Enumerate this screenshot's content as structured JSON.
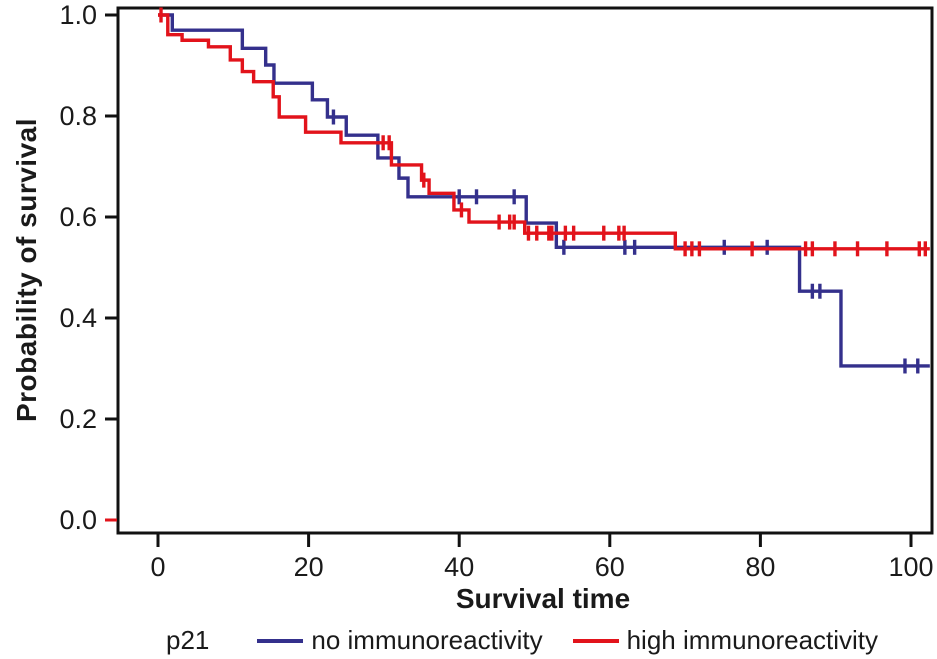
{
  "chart_data": {
    "type": "line",
    "subtype": "kaplan-meier-step-survival",
    "title": "",
    "xlabel": "Survival time",
    "ylabel": "Probability of survival",
    "xlim": [
      0,
      103
    ],
    "ylim": [
      0.0,
      1.0
    ],
    "xticks": [
      0,
      20,
      40,
      60,
      80,
      100
    ],
    "yticks": [
      "0.0",
      "0.2",
      "0.4",
      "0.6",
      "0.8",
      "1.0"
    ],
    "grid": false,
    "legend_position": "bottom",
    "legend_title": "p21",
    "axis_color": "#111111",
    "zero_tick_color": "#e2131b",
    "series": [
      {
        "name": "no immunoreactivity",
        "color": "#34308c",
        "end_time": 102.5,
        "steps": [
          [
            0,
            1.0
          ],
          [
            1.9,
            0.97
          ],
          [
            11.2,
            0.934
          ],
          [
            14.3,
            0.901
          ],
          [
            15.4,
            0.865
          ],
          [
            20.5,
            0.832
          ],
          [
            22.5,
            0.798
          ],
          [
            25.0,
            0.762
          ],
          [
            29.2,
            0.717
          ],
          [
            32.0,
            0.677
          ],
          [
            33.2,
            0.64
          ],
          [
            48.9,
            0.588
          ],
          [
            52.9,
            0.54
          ],
          [
            85.2,
            0.453
          ],
          [
            90.7,
            0.305
          ]
        ],
        "censors": [
          [
            23.3,
            0.798
          ],
          [
            40.0,
            0.64
          ],
          [
            42.3,
            0.64
          ],
          [
            47.3,
            0.64
          ],
          [
            53.9,
            0.54
          ],
          [
            62.0,
            0.54
          ],
          [
            63.3,
            0.54
          ],
          [
            75.2,
            0.54
          ],
          [
            80.9,
            0.54
          ],
          [
            86.9,
            0.453
          ],
          [
            87.9,
            0.453
          ],
          [
            99.2,
            0.305
          ],
          [
            100.9,
            0.305
          ]
        ]
      },
      {
        "name": "high immunoreactivity",
        "color": "#e2131b",
        "end_time": 102.5,
        "steps": [
          [
            0,
            1.0
          ],
          [
            1.3,
            0.961
          ],
          [
            3.2,
            0.95
          ],
          [
            6.7,
            0.937
          ],
          [
            9.6,
            0.911
          ],
          [
            11.2,
            0.888
          ],
          [
            12.7,
            0.868
          ],
          [
            15.3,
            0.838
          ],
          [
            16.1,
            0.798
          ],
          [
            19.6,
            0.768
          ],
          [
            24.3,
            0.747
          ],
          [
            31.0,
            0.703
          ],
          [
            35.0,
            0.673
          ],
          [
            36.0,
            0.647
          ],
          [
            39.3,
            0.614
          ],
          [
            41.3,
            0.59
          ],
          [
            48.7,
            0.568
          ],
          [
            68.7,
            0.537
          ]
        ],
        "censors": [
          [
            0.4,
            1.0
          ],
          [
            29.9,
            0.747
          ],
          [
            30.7,
            0.747
          ],
          [
            35.3,
            0.673
          ],
          [
            40.3,
            0.614
          ],
          [
            45.3,
            0.59
          ],
          [
            46.7,
            0.59
          ],
          [
            47.3,
            0.59
          ],
          [
            49.2,
            0.568
          ],
          [
            50.3,
            0.568
          ],
          [
            51.9,
            0.568
          ],
          [
            52.3,
            0.568
          ],
          [
            54.1,
            0.568
          ],
          [
            55.2,
            0.568
          ],
          [
            59.2,
            0.568
          ],
          [
            61.2,
            0.568
          ],
          [
            61.9,
            0.568
          ],
          [
            70.0,
            0.537
          ],
          [
            70.9,
            0.537
          ],
          [
            71.9,
            0.537
          ],
          [
            78.9,
            0.537
          ],
          [
            86.0,
            0.537
          ],
          [
            86.9,
            0.537
          ],
          [
            89.9,
            0.537
          ],
          [
            92.9,
            0.537
          ],
          [
            96.8,
            0.537
          ],
          [
            101.1,
            0.537
          ],
          [
            101.9,
            0.537
          ]
        ]
      }
    ]
  }
}
